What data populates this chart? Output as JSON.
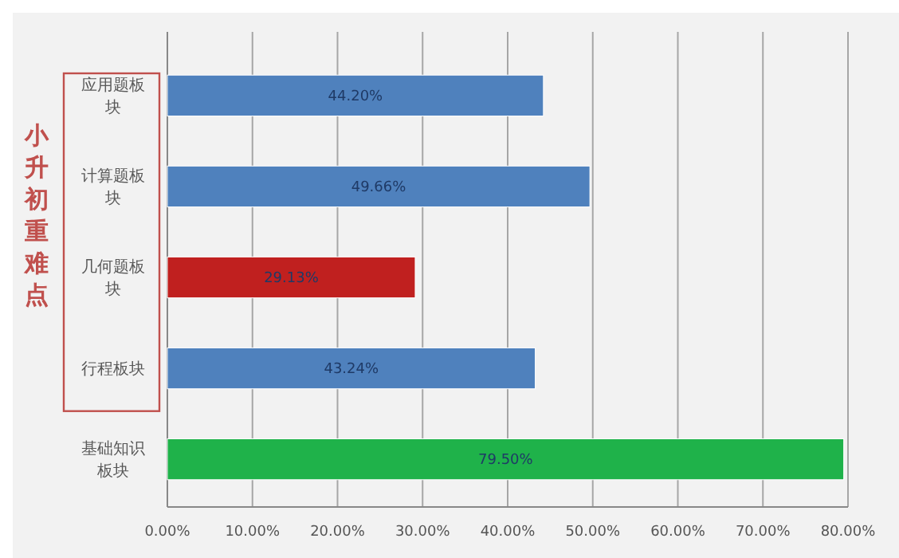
{
  "chart_data": {
    "type": "bar",
    "orientation": "horizontal",
    "ylabel": "小升初重难点",
    "categories": [
      "应用题板块",
      "计算题板块",
      "几何题板块",
      "行程板块",
      "基础知识板块"
    ],
    "values": [
      44.2,
      49.66,
      29.13,
      43.24,
      79.5
    ],
    "colors": [
      "#4f81bd",
      "#4f81bd",
      "#c0201f",
      "#4f81bd",
      "#1fb24a"
    ],
    "value_labels": [
      "44.20%",
      "49.66%",
      "29.13%",
      "43.24%",
      "79.50%"
    ],
    "xlim": [
      0,
      80
    ],
    "xticks": [
      {
        "value": 0,
        "label": "0.00%"
      },
      {
        "value": 10,
        "label": "10.00%"
      },
      {
        "value": 20,
        "label": "20.00%"
      },
      {
        "value": 30,
        "label": "30.00%"
      },
      {
        "value": 40,
        "label": "40.00%"
      },
      {
        "value": 50,
        "label": "50.00%"
      },
      {
        "value": 60,
        "label": "60.00%"
      },
      {
        "value": 70,
        "label": "70.00%"
      },
      {
        "value": 80,
        "label": "80.00%"
      }
    ],
    "grid": "x"
  }
}
